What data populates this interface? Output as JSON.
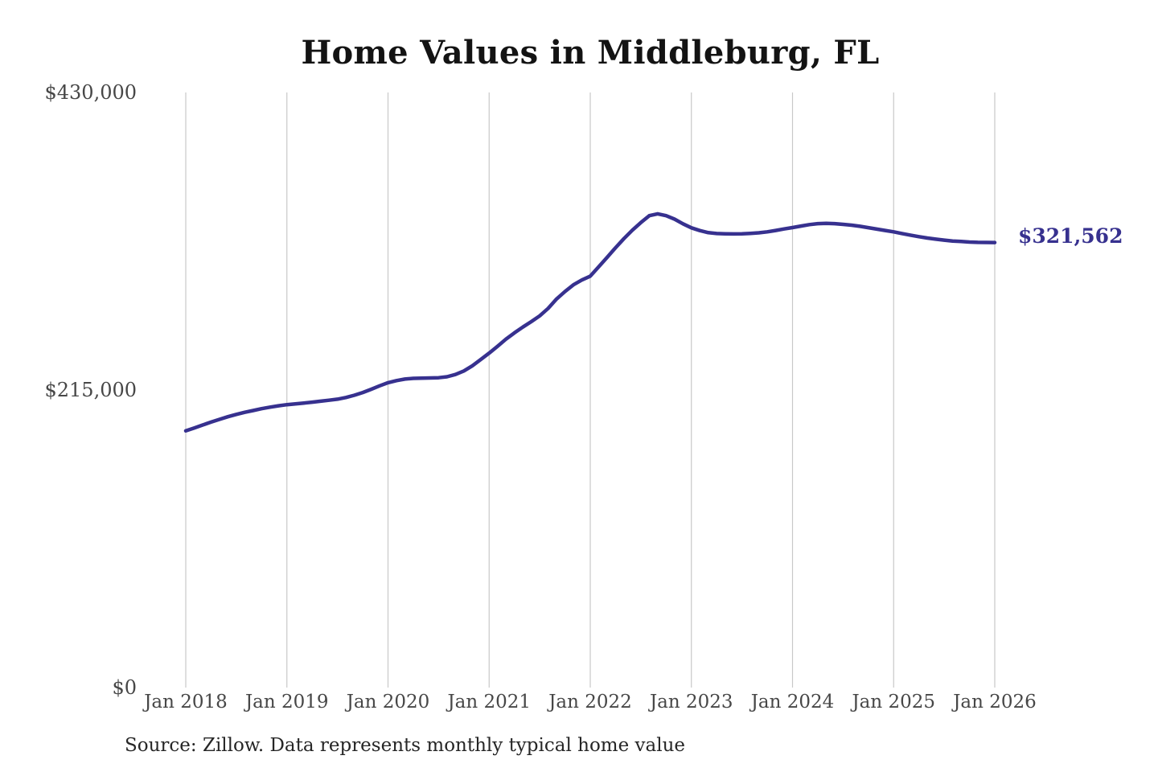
{
  "title": "Home Values in Middleburg, FL",
  "source_note": "Source: Zillow. Data represents monthly typical home value",
  "end_label": "$321,562",
  "colors": {
    "line": "#37318f",
    "end_label": "#37318f",
    "grid": "#c8c8c8",
    "tick_text": "#474747",
    "title_text": "#131313",
    "source_text": "#262626",
    "background": "#ffffff"
  },
  "chart_data": {
    "type": "line",
    "title": "Home Values in Middleburg, FL",
    "xlabel": "",
    "ylabel": "",
    "ylim": [
      0,
      430000
    ],
    "grid": "vertical-yearly-only",
    "legend": "none",
    "y_ticks": [
      {
        "label": "$430,000",
        "value": 430000
      },
      {
        "label": "$215,000",
        "value": 215000
      },
      {
        "label": "$0",
        "value": 0
      }
    ],
    "x_ticks": [
      "Jan 2018",
      "Jan 2019",
      "Jan 2020",
      "Jan 2021",
      "Jan 2022",
      "Jan 2023",
      "Jan 2024",
      "Jan 2025",
      "Jan 2026"
    ],
    "series": [
      {
        "name": "Typical home value",
        "start": "Jan 2018",
        "end": "Jan 2026",
        "interval_months": 1,
        "values": [
          185500,
          187600,
          189700,
          191800,
          193800,
          195700,
          197400,
          198900,
          200200,
          201500,
          202600,
          203600,
          204400,
          205000,
          205600,
          206200,
          206900,
          207600,
          208400,
          209600,
          211200,
          213200,
          215500,
          218000,
          220300,
          221800,
          222900,
          223400,
          223600,
          223700,
          223900,
          224600,
          226200,
          228800,
          232500,
          237000,
          241700,
          246600,
          251800,
          256300,
          260500,
          264400,
          268600,
          274000,
          280800,
          286200,
          291000,
          294500,
          297300,
          304000,
          310900,
          317800,
          324400,
          330500,
          336000,
          341000,
          342300,
          341000,
          338500,
          335100,
          332200,
          330200,
          328700,
          328100,
          327900,
          327800,
          327900,
          328200,
          328600,
          329300,
          330300,
          331400,
          332400,
          333500,
          334500,
          335200,
          335400,
          335200,
          334700,
          334100,
          333300,
          332300,
          331300,
          330300,
          329300,
          328100,
          326900,
          325800,
          324800,
          324000,
          323300,
          322700,
          322300,
          321900,
          321700,
          321600,
          321562
        ],
        "final_value": 321562,
        "final_value_label": "$321,562"
      }
    ],
    "annotations": [
      {
        "text": "$321,562",
        "position": "right-of-line-end"
      }
    ]
  }
}
